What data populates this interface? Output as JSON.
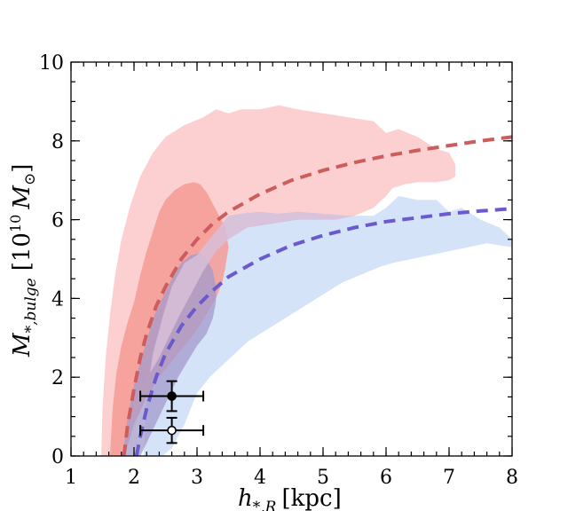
{
  "chart_data": {
    "type": "line",
    "title": "",
    "xlabel": "h_{*,R} [kpc]",
    "ylabel": "M_{*,bulge} [10^{10} M_⊙]",
    "xlim": [
      1,
      8
    ],
    "ylim": [
      0,
      10
    ],
    "xticks": [
      1,
      2,
      3,
      4,
      5,
      6,
      7,
      8
    ],
    "yticks": [
      0,
      2,
      4,
      6,
      8,
      10
    ],
    "grid": false,
    "axis_text": {
      "x_main": "h",
      "x_sub": "*,R",
      "x_unit": "[kpc]",
      "y_main": "M",
      "y_sub": "*,bulge",
      "y_unit_open": "[10",
      "y_exp": "10",
      "y_unit_M": "M",
      "y_unit_sun": "⊙",
      "y_unit_close": "]"
    },
    "colors": {
      "red_outer": "#fcd0d0",
      "red_inner": "#f59b95",
      "blue_outer": "#c6d9f6",
      "overlap": "#d8bfd8",
      "overlap_inner": "#a39bcc",
      "red_curve": "#cd5c5c",
      "blue_curve": "#6a5acd"
    },
    "series": [
      {
        "kind": "curve",
        "style": "dashed",
        "color": "#cd5c5c",
        "x": [
          1.84,
          1.9,
          2.0,
          2.1,
          2.2,
          2.35,
          2.5,
          2.75,
          3.0,
          3.25,
          3.5,
          4.0,
          4.5,
          5.0,
          5.5,
          6.0,
          6.5,
          7.0,
          7.5,
          8.0
        ],
        "y": [
          0.0,
          0.8,
          1.7,
          2.5,
          3.1,
          3.8,
          4.3,
          5.0,
          5.5,
          5.9,
          6.2,
          6.65,
          7.0,
          7.25,
          7.45,
          7.62,
          7.76,
          7.88,
          8.0,
          8.1
        ]
      },
      {
        "kind": "curve",
        "style": "dashed",
        "color": "#6a5acd",
        "x": [
          2.04,
          2.1,
          2.2,
          2.35,
          2.5,
          2.75,
          3.0,
          3.25,
          3.5,
          4.0,
          4.5,
          5.0,
          5.5,
          6.0,
          6.5,
          7.0,
          7.5,
          8.0
        ],
        "y": [
          0.0,
          0.5,
          1.2,
          2.0,
          2.6,
          3.3,
          3.8,
          4.2,
          4.55,
          5.0,
          5.35,
          5.6,
          5.8,
          5.95,
          6.05,
          6.15,
          6.22,
          6.28
        ]
      },
      {
        "kind": "region",
        "color": "#fcd0d0",
        "x": [
          1.48,
          1.5,
          1.55,
          1.62,
          1.7,
          1.8,
          1.95,
          2.1,
          2.3,
          2.5,
          2.8,
          3.1,
          3.3,
          3.5,
          3.7,
          4.0,
          4.3,
          4.6,
          5.0,
          5.4,
          5.8,
          6.0,
          6.2,
          6.5,
          6.8,
          7.0,
          7.1,
          7.1,
          7.0,
          6.8,
          6.5,
          6.3,
          6.1,
          6.0,
          5.8,
          5.5,
          5.2,
          4.9,
          4.6,
          4.2,
          3.8,
          3.5,
          3.3,
          3.1,
          2.9,
          2.7,
          2.55,
          2.4,
          2.25,
          2.1,
          1.98,
          1.9,
          1.84,
          1.76,
          1.7,
          1.62,
          1.55
        ],
        "y": [
          0.0,
          1.2,
          2.5,
          3.6,
          4.6,
          5.5,
          6.4,
          7.1,
          7.7,
          8.1,
          8.4,
          8.6,
          8.8,
          8.7,
          8.8,
          8.8,
          8.9,
          8.8,
          8.7,
          8.6,
          8.5,
          8.2,
          8.3,
          8.1,
          7.8,
          7.7,
          7.4,
          7.1,
          7.0,
          6.95,
          6.95,
          6.9,
          6.8,
          6.6,
          6.3,
          6.1,
          6.0,
          6.0,
          6.0,
          5.9,
          5.8,
          5.5,
          5.2,
          4.7,
          4.1,
          3.5,
          3.0,
          2.5,
          2.1,
          1.6,
          1.2,
          0.8,
          0.3,
          0.0,
          0.0,
          0.0,
          0.0
        ]
      },
      {
        "kind": "region",
        "color": "#c6d9f6",
        "x": [
          2.15,
          2.2,
          2.3,
          2.45,
          2.6,
          2.8,
          3.0,
          3.2,
          3.4,
          3.5,
          3.7,
          4.0,
          4.3,
          4.6,
          5.0,
          5.4,
          5.8,
          6.0,
          6.2,
          6.5,
          6.8,
          7.0,
          7.2,
          7.5,
          7.8,
          8.0,
          8.0,
          7.8,
          7.6,
          7.3,
          7.0,
          6.7,
          6.4,
          6.1,
          5.9,
          5.6,
          5.3,
          5.0,
          4.7,
          4.4,
          4.1,
          3.8,
          3.6,
          3.4,
          3.2,
          3.0,
          2.9,
          2.8,
          2.7,
          2.6,
          2.45,
          2.3
        ],
        "y": [
          0.0,
          1.5,
          2.6,
          3.5,
          4.3,
          4.9,
          5.1,
          5.5,
          5.9,
          6.1,
          6.15,
          6.2,
          6.15,
          6.2,
          6.15,
          6.1,
          6.1,
          6.3,
          6.6,
          6.5,
          6.5,
          6.2,
          6.3,
          6.0,
          5.8,
          5.5,
          5.3,
          5.35,
          5.4,
          5.3,
          5.2,
          5.1,
          5.0,
          4.9,
          4.8,
          4.6,
          4.4,
          4.1,
          3.8,
          3.5,
          3.2,
          2.9,
          2.6,
          2.3,
          2.0,
          1.6,
          1.2,
          0.8,
          0.5,
          0.2,
          0.0,
          0.0
        ]
      },
      {
        "kind": "region",
        "color": "#f59b95",
        "x": [
          1.62,
          1.66,
          1.72,
          1.8,
          1.9,
          2.0,
          2.1,
          2.2,
          2.3,
          2.4,
          2.5,
          2.65,
          2.8,
          2.95,
          3.05,
          3.15,
          3.25,
          3.35,
          3.45,
          3.5,
          3.45,
          3.4,
          3.3,
          3.15,
          3.0,
          2.8,
          2.6,
          2.4,
          2.2,
          2.0,
          1.85
        ],
        "y": [
          0.0,
          1.2,
          2.1,
          2.8,
          3.4,
          3.9,
          4.6,
          5.2,
          5.7,
          6.2,
          6.5,
          6.75,
          6.9,
          6.95,
          6.9,
          6.7,
          6.4,
          6.1,
          5.8,
          5.3,
          4.8,
          4.4,
          4.0,
          3.6,
          3.2,
          2.8,
          2.4,
          2.0,
          1.5,
          0.8,
          0.0
        ]
      },
      {
        "kind": "region",
        "color": "#a39bcc",
        "x": [
          1.82,
          1.9,
          2.0,
          2.1,
          2.2,
          2.3,
          2.45,
          2.6,
          2.75,
          2.9,
          3.05,
          3.15,
          3.25,
          3.3,
          3.3,
          3.25,
          3.15,
          3.0,
          2.85,
          2.7,
          2.55,
          2.4,
          2.25,
          2.1
        ],
        "y": [
          0.0,
          1.0,
          1.8,
          2.4,
          2.9,
          3.5,
          4.0,
          4.5,
          4.9,
          5.1,
          5.15,
          5.0,
          4.7,
          4.3,
          3.9,
          3.5,
          3.1,
          2.8,
          2.4,
          2.0,
          1.5,
          1.0,
          0.5,
          0.0
        ]
      },
      {
        "kind": "errorbar",
        "marker": "filled-circle",
        "x": 2.6,
        "y": 1.52,
        "xerr": [
          0.5,
          0.5
        ],
        "yerr": [
          0.38,
          0.38
        ]
      },
      {
        "kind": "errorbar",
        "marker": "open-circle",
        "x": 2.6,
        "y": 0.65,
        "xerr": [
          0.5,
          0.5
        ],
        "yerr": [
          0.32,
          0.32
        ]
      }
    ]
  }
}
